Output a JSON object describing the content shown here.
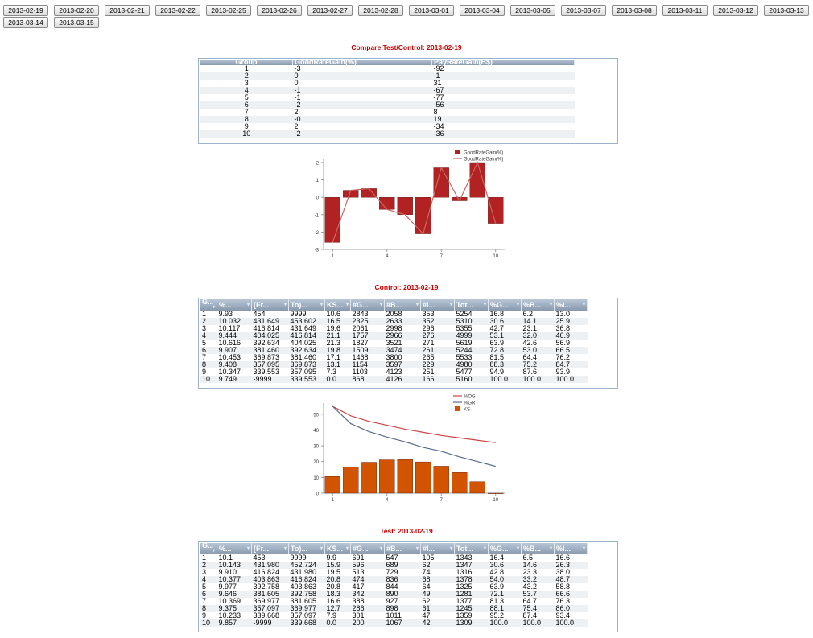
{
  "dates": [
    "2013-02-19",
    "2013-02-20",
    "2013-02-21",
    "2013-02-22",
    "2013-02-25",
    "2013-02-26",
    "2013-02-27",
    "2013-02-28",
    "2013-03-01",
    "2013-03-04",
    "2013-03-05",
    "2013-03-07",
    "2013-03-08",
    "2013-03-11",
    "2013-03-12",
    "2013-03-13",
    "2013-03-14",
    "2013-03-15"
  ],
  "compare": {
    "title": "Compare Test/Control: 2013-02-19",
    "columns": [
      "Group",
      "GoodRateGain(%)",
      "PayRateGain(B$)"
    ],
    "rows": [
      [
        "1",
        "-3",
        "-92"
      ],
      [
        "2",
        "0",
        "-1"
      ],
      [
        "3",
        "0",
        "31"
      ],
      [
        "4",
        "-1",
        "-67"
      ],
      [
        "5",
        "-1",
        "-77"
      ],
      [
        "6",
        "-2",
        "-56"
      ],
      [
        "7",
        "2",
        "8"
      ],
      [
        "8",
        "-0",
        "19"
      ],
      [
        "9",
        "2",
        "-34"
      ],
      [
        "10",
        "-2",
        "-36"
      ]
    ]
  },
  "control": {
    "title": "Control: 2013-02-19",
    "columns": [
      "G...",
      "%...",
      "[Fr...",
      "To)...",
      "KS...",
      "#G...",
      "#B...",
      "#I...",
      "Tot...",
      "%G...",
      "%B...",
      "%I..."
    ],
    "rows": [
      [
        "1",
        "9.93",
        "454",
        "9999",
        "10.6",
        "2843",
        "2058",
        "353",
        "5254",
        "16.8",
        "6.2",
        "13.0"
      ],
      [
        "2",
        "10.032",
        "431.649",
        "453.602",
        "16.5",
        "2325",
        "2633",
        "352",
        "5310",
        "30.6",
        "14.1",
        "25.9"
      ],
      [
        "3",
        "10.117",
        "416.814",
        "431.649",
        "19.6",
        "2061",
        "2998",
        "296",
        "5355",
        "42.7",
        "23.1",
        "36.8"
      ],
      [
        "4",
        "9.444",
        "404.025",
        "416.814",
        "21.1",
        "1757",
        "2966",
        "276",
        "4999",
        "53.1",
        "32.0",
        "46.9"
      ],
      [
        "5",
        "10.616",
        "392.634",
        "404.025",
        "21.3",
        "1827",
        "3521",
        "271",
        "5619",
        "63.9",
        "42.6",
        "56.9"
      ],
      [
        "6",
        "9.907",
        "381.460",
        "392.634",
        "19.8",
        "1509",
        "3474",
        "261",
        "5244",
        "72.8",
        "53.0",
        "66.5"
      ],
      [
        "7",
        "10.453",
        "369.873",
        "381.460",
        "17.1",
        "1468",
        "3800",
        "265",
        "5533",
        "81.5",
        "64.4",
        "76.2"
      ],
      [
        "8",
        "9.408",
        "357.095",
        "369.873",
        "13.1",
        "1154",
        "3597",
        "229",
        "4980",
        "88.3",
        "75.2",
        "84.7"
      ],
      [
        "9",
        "10.347",
        "339.553",
        "357.095",
        "7.3",
        "1103",
        "4123",
        "251",
        "5477",
        "94.9",
        "87.6",
        "93.9"
      ],
      [
        "10",
        "9.749",
        "-9999",
        "339.553",
        "0.0",
        "868",
        "4126",
        "166",
        "5160",
        "100.0",
        "100.0",
        "100.0"
      ]
    ]
  },
  "test": {
    "title": "Test: 2013-02-19",
    "columns": [
      "G...",
      "%...",
      "[Fr...",
      "To)...",
      "KS...",
      "#G...",
      "#B...",
      "#I...",
      "Tot...",
      "%G...",
      "%B...",
      "%I..."
    ],
    "rows": [
      [
        "1",
        "10.1",
        "453",
        "9999",
        "9.9",
        "691",
        "547",
        "105",
        "1343",
        "16.4",
        "6.5",
        "16.6"
      ],
      [
        "2",
        "10.143",
        "431.980",
        "452.724",
        "15.9",
        "596",
        "689",
        "62",
        "1347",
        "30.6",
        "14.6",
        "26.3"
      ],
      [
        "3",
        "9.910",
        "416.824",
        "431.980",
        "19.5",
        "513",
        "729",
        "74",
        "1316",
        "42.8",
        "23.3",
        "38.0"
      ],
      [
        "4",
        "10.377",
        "403.863",
        "416.824",
        "20.8",
        "474",
        "836",
        "68",
        "1378",
        "54.0",
        "33.2",
        "48.7"
      ],
      [
        "5",
        "9.977",
        "392.758",
        "403.863",
        "20.8",
        "417",
        "844",
        "64",
        "1325",
        "63.9",
        "43.2",
        "58.8"
      ],
      [
        "6",
        "9.646",
        "381.605",
        "392.758",
        "18.3",
        "342",
        "890",
        "49",
        "1281",
        "72.1",
        "53.7",
        "66.6"
      ],
      [
        "7",
        "10.369",
        "369.977",
        "381.605",
        "16.6",
        "388",
        "927",
        "62",
        "1377",
        "81.3",
        "64.7",
        "76.3"
      ],
      [
        "8",
        "9.375",
        "357.097",
        "369.977",
        "12.7",
        "286",
        "898",
        "61",
        "1245",
        "88.1",
        "75.4",
        "86.0"
      ],
      [
        "9",
        "10.233",
        "339.668",
        "357.097",
        "7.9",
        "301",
        "1011",
        "47",
        "1359",
        "95.2",
        "87.4",
        "93.4"
      ],
      [
        "10",
        "9.857",
        "-9999",
        "339.668",
        "0.0",
        "200",
        "1067",
        "42",
        "1309",
        "100.0",
        "100.0",
        "100.0"
      ]
    ]
  },
  "chart_data": [
    {
      "type": "bar",
      "categories": [
        "1",
        "2",
        "3",
        "4",
        "5",
        "6",
        "7",
        "8",
        "9",
        "10"
      ],
      "x_tick_labels": [
        "1",
        "4",
        "7",
        "10"
      ],
      "series": [
        {
          "name": "GoodRateGain(%)",
          "kind": "bar",
          "color": "#b22222",
          "values": [
            -2.6,
            0.4,
            0.5,
            -0.7,
            -1.0,
            -2.1,
            1.7,
            -0.2,
            2.0,
            -1.5
          ]
        },
        {
          "name": "GoodRateGain(%)",
          "kind": "line",
          "color": "#cc6666",
          "values": [
            -2.6,
            0.4,
            0.5,
            -0.7,
            -1.0,
            -2.1,
            1.7,
            -0.2,
            2.0,
            -1.5
          ]
        }
      ],
      "ylim": [
        -3,
        2
      ],
      "yticks": [
        -3,
        -2,
        -1,
        0,
        1,
        2
      ],
      "grid": false,
      "legend": "top-right"
    },
    {
      "type": "bar",
      "categories": [
        "1",
        "2",
        "3",
        "4",
        "5",
        "6",
        "7",
        "8",
        "9",
        "10"
      ],
      "x_tick_labels": [
        "1",
        "4",
        "7",
        "10"
      ],
      "series": [
        {
          "name": "%OG",
          "kind": "line",
          "color": "#cc4444",
          "values": [
            55,
            49,
            45.5,
            43,
            40.5,
            38.5,
            36.5,
            35,
            33.5,
            32
          ]
        },
        {
          "name": "%GR",
          "kind": "line",
          "color": "#5a6b8c",
          "values": [
            55,
            44,
            39,
            35.5,
            32.5,
            29,
            26.5,
            23,
            20,
            17
          ]
        },
        {
          "name": "KS",
          "kind": "bar",
          "color": "#d35400",
          "values": [
            10.6,
            16.5,
            19.6,
            21.1,
            21.3,
            19.8,
            17.1,
            13.1,
            7.3,
            0.0
          ]
        }
      ],
      "ylim": [
        0,
        55
      ],
      "yticks": [
        0,
        10,
        20,
        30,
        40,
        50
      ],
      "grid": false,
      "legend": "top-right"
    }
  ]
}
